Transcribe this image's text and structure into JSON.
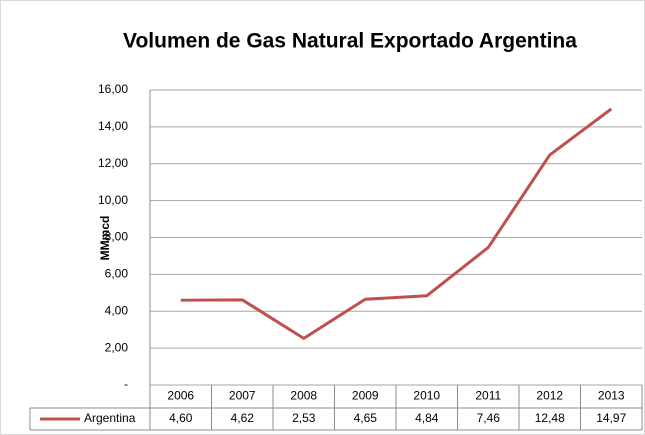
{
  "chart_data": {
    "type": "line",
    "title": "Volumen de Gas Natural Exportado Argentina",
    "y_label": "MMmcd",
    "categories": [
      "2006",
      "2007",
      "2008",
      "2009",
      "2010",
      "2011",
      "2012",
      "2013"
    ],
    "series": [
      {
        "name": "Argentina",
        "color": "#c0504d",
        "values": [
          4.6,
          4.62,
          2.53,
          4.65,
          4.84,
          7.46,
          12.48,
          14.97
        ],
        "value_labels": [
          "4,60",
          "4,62",
          "2,53",
          "4,65",
          "4,84",
          "7,46",
          "12,48",
          "14,97"
        ]
      }
    ],
    "ylim": [
      0,
      16
    ],
    "yticks": [
      {
        "value": 0,
        "label": "-"
      },
      {
        "value": 2,
        "label": "2,00"
      },
      {
        "value": 4,
        "label": "4,00"
      },
      {
        "value": 6,
        "label": "6,00"
      },
      {
        "value": 8,
        "label": "8,00"
      },
      {
        "value": 10,
        "label": "10,00"
      },
      {
        "value": 12,
        "label": "12,00"
      },
      {
        "value": 14,
        "label": "14,00"
      },
      {
        "value": 16,
        "label": "16,00"
      }
    ],
    "grid": true
  }
}
